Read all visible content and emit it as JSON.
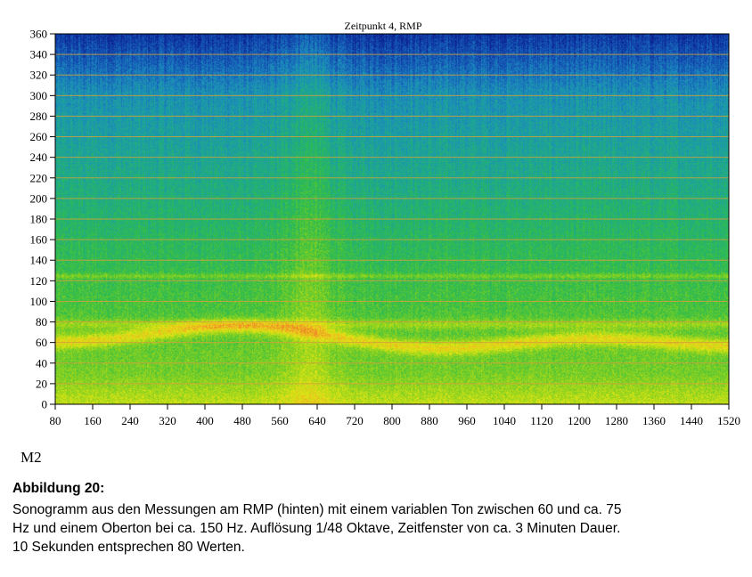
{
  "chart_data": {
    "type": "heatmap",
    "title": "Zeitpunkt 4, RMP",
    "xlabel": "",
    "ylabel": "",
    "xlim": [
      80,
      1520
    ],
    "ylim": [
      0,
      360
    ],
    "x_ticks": [
      "80",
      "160",
      "240",
      "320",
      "400",
      "480",
      "560",
      "640",
      "720",
      "800",
      "880",
      "960",
      "1040",
      "1120",
      "1200",
      "1280",
      "1360",
      "1440",
      "1520"
    ],
    "y_ticks": [
      "0",
      "20",
      "40",
      "60",
      "80",
      "100",
      "120",
      "140",
      "160",
      "180",
      "200",
      "220",
      "240",
      "260",
      "280",
      "300",
      "320",
      "340",
      "360"
    ],
    "grid": true,
    "colormap": [
      "#0a1c8c",
      "#1450b4",
      "#1c8cbe",
      "#1eaa8c",
      "#32be46",
      "#8cd21e",
      "#e6e614",
      "#f09628",
      "#e63c1e"
    ],
    "gridline_color": "#d2a03c",
    "features": {
      "fundamental_tone_y_range": [
        50,
        78
      ],
      "overtone_y": 125,
      "bright_column_x": 620
    }
  },
  "panel_label": "M2",
  "caption": {
    "heading": "Abbildung 20:",
    "lines": [
      "Sonogramm aus den Messungen am RMP (hinten) mit einem variablen Ton zwischen 60 und ca. 75",
      "Hz und einem Oberton bei ca. 150 Hz. Auflösung 1/48 Oktave, Zeitfenster von ca. 3 Minuten Dauer.",
      "10 Sekunden entsprechen 80 Werten."
    ]
  }
}
